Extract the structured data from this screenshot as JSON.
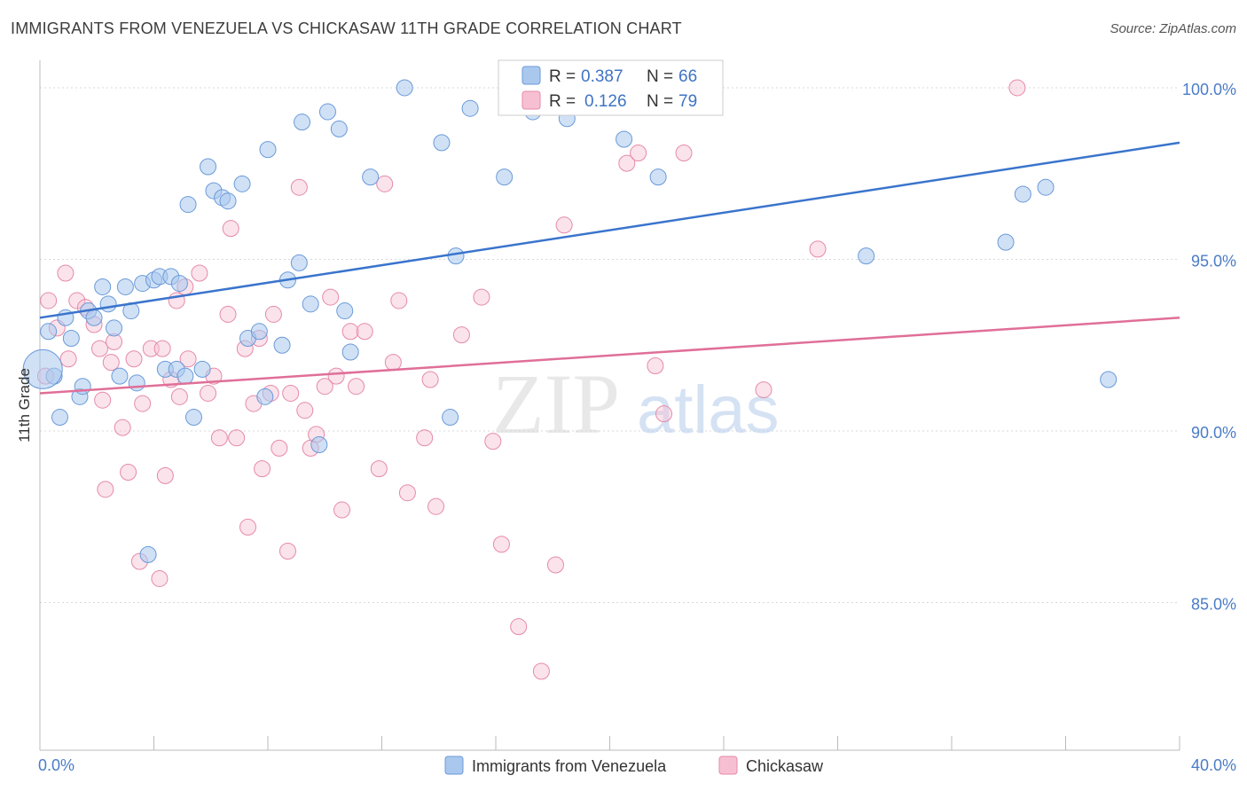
{
  "title": "IMMIGRANTS FROM VENEZUELA VS CHICKASAW 11TH GRADE CORRELATION CHART",
  "source": "Source: ZipAtlas.com",
  "watermark": {
    "zip": "ZIP",
    "atlas": "atlas"
  },
  "colors": {
    "blue_fill": "#aac8ee",
    "blue_stroke": "#6a9ad8",
    "blue_line": "#3a74cc",
    "pink_fill": "#f7c0d2",
    "pink_stroke": "#e58aa8",
    "pink_line": "#e06f98",
    "tick_text": "#4a7cc7",
    "grid": "#d9d9d9"
  },
  "legend_box": {
    "rows": [
      {
        "r_label": "R = ",
        "r_value": "0.387",
        "n_label": "N = ",
        "n_value": "66",
        "series": "blue"
      },
      {
        "r_label": "R = ",
        "r_value": "0.126",
        "n_label": "N = ",
        "n_value": "79",
        "series": "pink"
      }
    ]
  },
  "chart_data": {
    "type": "scatter",
    "title": "IMMIGRANTS FROM VENEZUELA VS CHICKASAW 11TH GRADE CORRELATION CHART",
    "xlabel": "",
    "ylabel": "11th Grade",
    "xlim": [
      0,
      40
    ],
    "ylim": [
      80.7,
      100.8
    ],
    "x_tick_labels": [
      "0.0%",
      "40.0%"
    ],
    "y_ticks": [
      85,
      90,
      95,
      100
    ],
    "y_tick_labels": [
      "85.0%",
      "90.0%",
      "95.0%",
      "100.0%"
    ],
    "legend": [
      "Immigrants from Venezuela",
      "Chickasaw"
    ],
    "series": [
      {
        "name": "Immigrants from Venezuela",
        "color": "blue",
        "trend": {
          "x": [
            0,
            40
          ],
          "y": [
            93.3,
            98.4
          ]
        },
        "points": [
          [
            0.3,
            92.9
          ],
          [
            0.5,
            91.6
          ],
          [
            0.7,
            90.4
          ],
          [
            0.9,
            93.3
          ],
          [
            1.1,
            92.7
          ],
          [
            1.4,
            91.0
          ],
          [
            1.5,
            91.3
          ],
          [
            1.7,
            93.5
          ],
          [
            1.9,
            93.3
          ],
          [
            2.2,
            94.2
          ],
          [
            2.4,
            93.7
          ],
          [
            2.6,
            93.0
          ],
          [
            2.8,
            91.6
          ],
          [
            3.0,
            94.2
          ],
          [
            3.2,
            93.5
          ],
          [
            3.4,
            91.4
          ],
          [
            3.6,
            94.3
          ],
          [
            3.8,
            86.4
          ],
          [
            4.0,
            94.4
          ],
          [
            4.2,
            94.5
          ],
          [
            4.4,
            91.8
          ],
          [
            4.6,
            94.5
          ],
          [
            4.8,
            91.8
          ],
          [
            4.9,
            94.3
          ],
          [
            5.1,
            91.6
          ],
          [
            5.2,
            96.6
          ],
          [
            5.4,
            90.4
          ],
          [
            5.7,
            91.8
          ],
          [
            5.9,
            97.7
          ],
          [
            6.1,
            97.0
          ],
          [
            6.4,
            96.8
          ],
          [
            6.6,
            96.7
          ],
          [
            7.1,
            97.2
          ],
          [
            7.3,
            92.7
          ],
          [
            7.7,
            92.9
          ],
          [
            7.9,
            91.0
          ],
          [
            8.0,
            98.2
          ],
          [
            8.5,
            92.5
          ],
          [
            8.7,
            94.4
          ],
          [
            9.1,
            94.9
          ],
          [
            9.2,
            99.0
          ],
          [
            9.5,
            93.7
          ],
          [
            9.8,
            89.6
          ],
          [
            10.1,
            99.3
          ],
          [
            10.5,
            98.8
          ],
          [
            10.7,
            93.5
          ],
          [
            10.9,
            92.3
          ],
          [
            11.6,
            97.4
          ],
          [
            12.8,
            100.0
          ],
          [
            14.1,
            98.4
          ],
          [
            14.4,
            90.4
          ],
          [
            14.6,
            95.1
          ],
          [
            15.1,
            99.4
          ],
          [
            16.3,
            97.4
          ],
          [
            17.3,
            99.3
          ],
          [
            20.5,
            98.5
          ],
          [
            21.7,
            97.4
          ],
          [
            22.3,
            100.0
          ],
          [
            23.0,
            99.7
          ],
          [
            29.0,
            95.1
          ],
          [
            33.9,
            95.5
          ],
          [
            34.5,
            96.9
          ],
          [
            35.3,
            97.1
          ],
          [
            37.5,
            91.5
          ],
          [
            18.5,
            99.1
          ],
          [
            0.1,
            91.8
          ]
        ]
      },
      {
        "name": "Chickasaw",
        "color": "pink",
        "trend": {
          "x": [
            0,
            40
          ],
          "y": [
            91.1,
            93.3
          ]
        },
        "points": [
          [
            0.2,
            91.6
          ],
          [
            0.3,
            93.8
          ],
          [
            0.6,
            93.0
          ],
          [
            0.9,
            94.6
          ],
          [
            1.0,
            92.1
          ],
          [
            1.3,
            93.8
          ],
          [
            1.6,
            93.6
          ],
          [
            1.9,
            93.1
          ],
          [
            2.1,
            92.4
          ],
          [
            2.2,
            90.9
          ],
          [
            2.3,
            88.3
          ],
          [
            2.5,
            92.0
          ],
          [
            2.6,
            92.6
          ],
          [
            2.9,
            90.1
          ],
          [
            3.1,
            88.8
          ],
          [
            3.3,
            92.1
          ],
          [
            3.5,
            86.2
          ],
          [
            3.6,
            90.8
          ],
          [
            3.9,
            92.4
          ],
          [
            4.2,
            85.7
          ],
          [
            4.3,
            92.4
          ],
          [
            4.4,
            88.7
          ],
          [
            4.6,
            91.5
          ],
          [
            4.8,
            93.8
          ],
          [
            4.9,
            91.0
          ],
          [
            5.1,
            94.2
          ],
          [
            5.2,
            92.1
          ],
          [
            5.6,
            94.6
          ],
          [
            5.9,
            91.1
          ],
          [
            6.1,
            91.6
          ],
          [
            6.3,
            89.8
          ],
          [
            6.6,
            93.4
          ],
          [
            6.7,
            95.9
          ],
          [
            6.9,
            89.8
          ],
          [
            7.2,
            92.4
          ],
          [
            7.3,
            87.2
          ],
          [
            7.5,
            90.8
          ],
          [
            7.7,
            92.7
          ],
          [
            7.8,
            88.9
          ],
          [
            8.2,
            93.4
          ],
          [
            8.4,
            89.5
          ],
          [
            8.7,
            86.5
          ],
          [
            8.8,
            91.1
          ],
          [
            9.1,
            97.1
          ],
          [
            9.3,
            90.6
          ],
          [
            9.5,
            89.5
          ],
          [
            9.7,
            89.9
          ],
          [
            10.0,
            91.3
          ],
          [
            10.2,
            93.9
          ],
          [
            10.4,
            91.6
          ],
          [
            10.6,
            87.7
          ],
          [
            10.9,
            92.9
          ],
          [
            11.1,
            91.3
          ],
          [
            11.4,
            92.9
          ],
          [
            11.9,
            88.9
          ],
          [
            12.1,
            97.2
          ],
          [
            12.4,
            92.0
          ],
          [
            12.6,
            93.8
          ],
          [
            12.9,
            88.2
          ],
          [
            13.5,
            89.8
          ],
          [
            13.7,
            91.5
          ],
          [
            13.9,
            87.8
          ],
          [
            14.8,
            92.8
          ],
          [
            15.5,
            93.9
          ],
          [
            15.9,
            89.7
          ],
          [
            16.2,
            86.7
          ],
          [
            16.8,
            84.3
          ],
          [
            17.6,
            83.0
          ],
          [
            18.1,
            86.1
          ],
          [
            18.4,
            96.0
          ],
          [
            20.6,
            97.8
          ],
          [
            21.0,
            98.1
          ],
          [
            21.6,
            91.9
          ],
          [
            21.9,
            90.5
          ],
          [
            22.6,
            98.1
          ],
          [
            25.4,
            91.2
          ],
          [
            27.3,
            95.3
          ],
          [
            34.3,
            100.0
          ],
          [
            8.1,
            91.1
          ]
        ]
      }
    ]
  }
}
